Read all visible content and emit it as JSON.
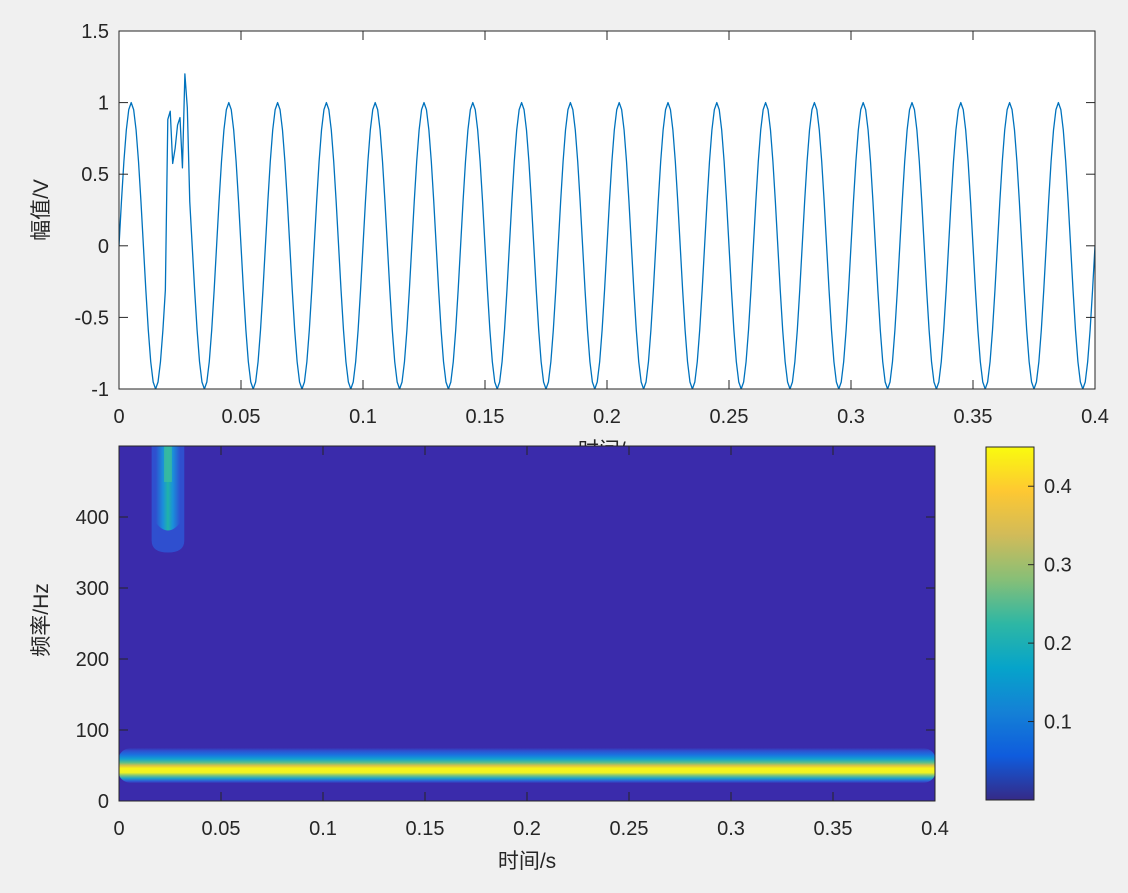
{
  "chart_data": [
    {
      "type": "line",
      "title": "",
      "xlabel": "时间/s",
      "ylabel": "幅值/V",
      "xlim": [
        0,
        0.4
      ],
      "ylim": [
        -1,
        1.5
      ],
      "xticks": [
        0,
        0.05,
        0.1,
        0.15,
        0.2,
        0.25,
        0.3,
        0.35,
        0.4
      ],
      "xtick_labels": [
        "0",
        "0.05",
        "0.1",
        "0.15",
        "0.2",
        "0.25",
        "0.3",
        "0.35",
        "0.4"
      ],
      "yticks": [
        1.5,
        1,
        0.5,
        0,
        -0.5,
        -1
      ],
      "ytick_labels": [
        "1.5",
        "1",
        "0.5",
        "0",
        "-0.5",
        "-1"
      ],
      "grid": false,
      "line_color": "#0072bd",
      "series": [
        {
          "signal": "sine",
          "amplitude": 1,
          "frequency_hz": 50,
          "sample_rate_hz": 1000,
          "disturbance": {
            "t_start": 0.02,
            "t_end": 0.028,
            "peak": 1.3,
            "min": 0.48
          }
        }
      ]
    },
    {
      "type": "heatmap",
      "title": "",
      "xlabel": "时间/s",
      "ylabel": "频率/Hz",
      "xlim": [
        0,
        0.4
      ],
      "ylim": [
        0,
        500
      ],
      "xticks": [
        0,
        0.05,
        0.1,
        0.15,
        0.2,
        0.25,
        0.3,
        0.35,
        0.4
      ],
      "xtick_labels": [
        "0",
        "0.05",
        "0.1",
        "0.15",
        "0.2",
        "0.25",
        "0.3",
        "0.35",
        "0.4"
      ],
      "yticks": [
        0,
        100,
        200,
        300,
        400
      ],
      "ytick_labels": [
        "0",
        "100",
        "200",
        "300",
        "400"
      ],
      "background_color": "#3a2bab",
      "colormap": "parula",
      "colorbar": {
        "range": [
          0,
          0.45
        ],
        "ticks": [
          0.1,
          0.2,
          0.3,
          0.4
        ],
        "tick_labels": [
          "0.1",
          "0.2",
          "0.3",
          "0.4"
        ]
      },
      "bands": [
        {
          "name": "50 Hz fundamental",
          "t_start": 0,
          "t_end": 0.4,
          "f_center": 50,
          "f_half_width": 25,
          "peak": 0.45
        },
        {
          "name": "high-frequency transient",
          "t_center": 0.024,
          "t_half_width": 0.008,
          "f_start": 350,
          "f_end": 500,
          "peak": 0.25
        }
      ]
    }
  ]
}
